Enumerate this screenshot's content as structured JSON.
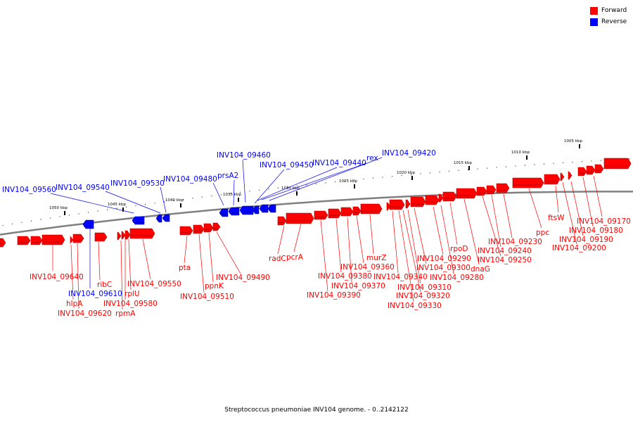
{
  "caption": "Streptococcus pneumoniae INV104 genome. - 0..2142122",
  "legend": [
    {
      "label": "Forward",
      "color": "#ff0000"
    },
    {
      "label": "Reverse",
      "color": "#0000ff"
    }
  ],
  "colors": {
    "forward": "#ff0000",
    "forward_dark": "#b30000",
    "reverse": "#0000ff",
    "reverse_dark": "#0000a0",
    "backbone": "#808080"
  },
  "ticks": [
    "1005 kbp",
    "1010 kbp",
    "1015 kbp",
    "1020 kbp",
    "1025 kbp",
    "1030 kbp",
    "1035 kbp",
    "1040 kbp",
    "1045 kbp",
    "1050 kbp"
  ],
  "reverse_labels": [
    "INV104_09560",
    "INV104_09540",
    "INV104_09530",
    "INV104_09480",
    "prsA2",
    "INV104_09460",
    "INV104_09450",
    "INV104_09440",
    "rex",
    "INV104_09420",
    "INV104_09610"
  ],
  "forward_labels": [
    "INV104_09640",
    "hlpA",
    "INV104_09620",
    "ribC",
    "INV104_09580",
    "rplU",
    "rpmA",
    "INV104_09550",
    "pta",
    "INV104_09510",
    "ppnK",
    "INV104_09490",
    "radC",
    "pcrA",
    "INV104_09390",
    "INV104_09380",
    "INV104_09370",
    "INV104_09360",
    "murZ",
    "INV104_09340",
    "INV104_09330",
    "INV104_09320",
    "INV104_09310",
    "INV104_09300",
    "INV104_09290",
    "INV104_09280",
    "rpoD",
    "dnaG",
    "INV104_09250",
    "INV104_09240",
    "INV104_09230",
    "ppc",
    "ftsW",
    "INV104_09200",
    "INV104_09190",
    "INV104_09180",
    "INV104_09170"
  ]
}
